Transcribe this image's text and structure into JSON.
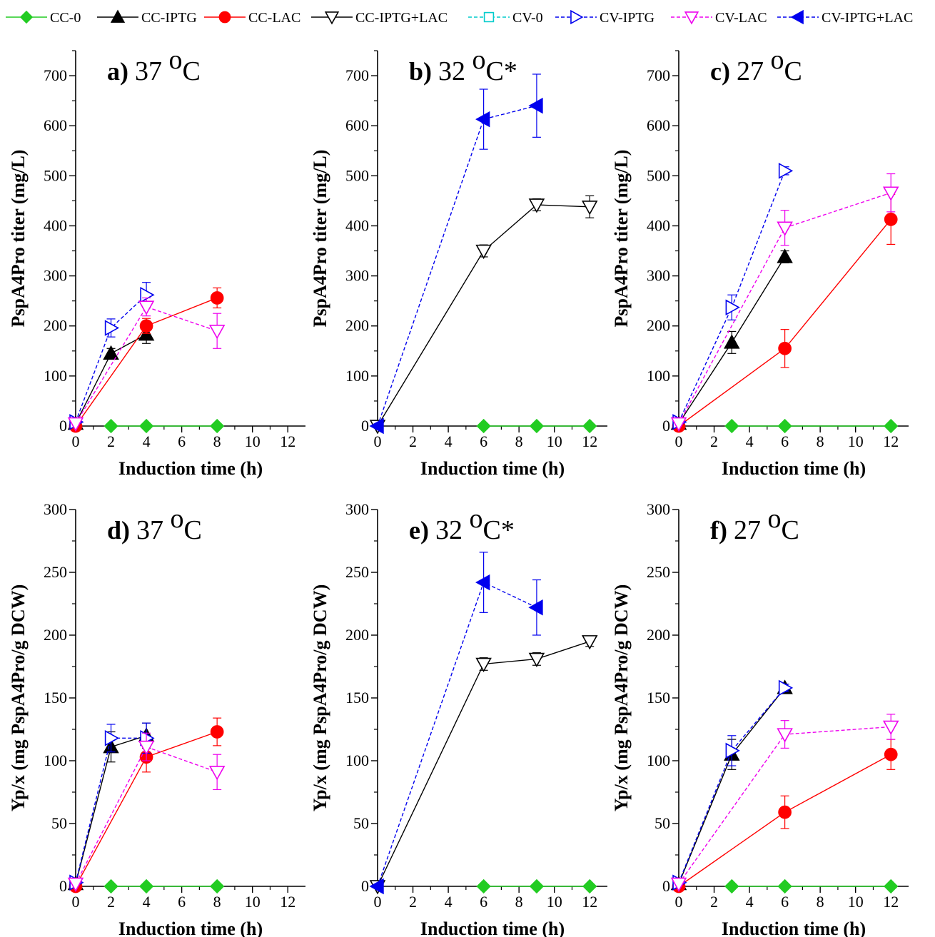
{
  "legend": [
    {
      "key": "cc0",
      "label": "CC-0",
      "color": "#22cc22",
      "marker": "diamond",
      "fill": true,
      "dash": false
    },
    {
      "key": "ccIptg",
      "label": "CC-IPTG",
      "color": "#000000",
      "marker": "triangle-up",
      "fill": true,
      "dash": false
    },
    {
      "key": "ccLac",
      "label": "CC-LAC",
      "color": "#ff0000",
      "marker": "circle",
      "fill": true,
      "dash": false
    },
    {
      "key": "ccIptgLac",
      "label": "CC-IPTG+LAC",
      "color": "#000000",
      "marker": "triangle-down",
      "fill": false,
      "dash": false
    },
    {
      "key": "cv0",
      "label": "CV-0",
      "color": "#00cccc",
      "marker": "square",
      "fill": false,
      "dash": true
    },
    {
      "key": "cvIptg",
      "label": "CV-IPTG",
      "color": "#0000ee",
      "marker": "triangle-right",
      "fill": false,
      "dash": true
    },
    {
      "key": "cvLac",
      "label": "CV-LAC",
      "color": "#ee00ee",
      "marker": "triangle-down",
      "fill": false,
      "dash": true
    },
    {
      "key": "cvIptgLac",
      "label": "CV-IPTG+LAC",
      "color": "#0000ee",
      "marker": "triangle-left",
      "fill": true,
      "dash": true
    }
  ],
  "chart_data": [
    {
      "id": "a",
      "type": "line",
      "title_letter": "a)",
      "title_temp": "37",
      "title_suffix": "",
      "xlabel": "Induction time (h)",
      "ylabel": "PspA4Pro titer (mg/L)",
      "xlim": [
        0,
        13
      ],
      "ylim": [
        0,
        750
      ],
      "xticks": [
        0,
        2,
        4,
        6,
        8,
        10,
        12
      ],
      "yticks": [
        0,
        100,
        200,
        300,
        400,
        500,
        600,
        700
      ],
      "series": [
        {
          "key": "cc0",
          "x": [
            2,
            4,
            8
          ],
          "y": [
            0,
            0,
            0
          ],
          "err": [
            0,
            0,
            0
          ]
        },
        {
          "key": "ccIptg",
          "x": [
            0,
            2,
            4
          ],
          "y": [
            5,
            145,
            183
          ],
          "err": [
            0,
            10,
            18
          ]
        },
        {
          "key": "ccLac",
          "x": [
            0,
            4,
            8
          ],
          "y": [
            0,
            200,
            256
          ],
          "err": [
            0,
            15,
            20
          ]
        },
        {
          "key": "cvIptg",
          "x": [
            0,
            2,
            4
          ],
          "y": [
            8,
            196,
            262
          ],
          "err": [
            0,
            18,
            25
          ]
        },
        {
          "key": "cvLac",
          "x": [
            0,
            4,
            8
          ],
          "y": [
            5,
            238,
            190
          ],
          "err": [
            0,
            18,
            35
          ]
        }
      ]
    },
    {
      "id": "b",
      "type": "line",
      "title_letter": "b)",
      "title_temp": "32",
      "title_suffix": "*",
      "xlabel": "Induction time (h)",
      "ylabel": "PspA4Pro titer (mg/L)",
      "xlim": [
        0,
        13
      ],
      "ylim": [
        0,
        750
      ],
      "xticks": [
        0,
        2,
        4,
        6,
        8,
        10,
        12
      ],
      "yticks": [
        0,
        100,
        200,
        300,
        400,
        500,
        600,
        700
      ],
      "series": [
        {
          "key": "cc0",
          "x": [
            6,
            9,
            12
          ],
          "y": [
            0,
            0,
            0
          ],
          "err": [
            0,
            0,
            0
          ]
        },
        {
          "key": "ccIptgLac",
          "x": [
            0,
            6,
            9,
            12
          ],
          "y": [
            0,
            350,
            442,
            438
          ],
          "err": [
            0,
            12,
            12,
            22
          ]
        },
        {
          "key": "cvIptgLac",
          "x": [
            0,
            6,
            9
          ],
          "y": [
            0,
            613,
            640
          ],
          "err": [
            0,
            60,
            63
          ]
        }
      ]
    },
    {
      "id": "c",
      "type": "line",
      "title_letter": "c)",
      "title_temp": "27",
      "title_suffix": "",
      "xlabel": "Induction time (h)",
      "ylabel": "PspA4Pro titer (mg/L)",
      "xlim": [
        0,
        13
      ],
      "ylim": [
        0,
        750
      ],
      "xticks": [
        0,
        2,
        4,
        6,
        8,
        10,
        12
      ],
      "yticks": [
        0,
        100,
        200,
        300,
        400,
        500,
        600,
        700
      ],
      "series": [
        {
          "key": "cc0",
          "x": [
            3,
            6,
            12
          ],
          "y": [
            0,
            0,
            0
          ],
          "err": [
            0,
            0,
            0
          ]
        },
        {
          "key": "ccIptg",
          "x": [
            0,
            3,
            6
          ],
          "y": [
            5,
            167,
            338
          ],
          "err": [
            0,
            22,
            12
          ]
        },
        {
          "key": "ccLac",
          "x": [
            0,
            6,
            12
          ],
          "y": [
            0,
            155,
            413
          ],
          "err": [
            0,
            38,
            50
          ]
        },
        {
          "key": "cvIptg",
          "x": [
            0,
            3,
            6
          ],
          "y": [
            8,
            237,
            510
          ],
          "err": [
            0,
            25,
            8
          ]
        },
        {
          "key": "cvLac",
          "x": [
            0,
            6,
            12
          ],
          "y": [
            5,
            396,
            466
          ],
          "err": [
            0,
            35,
            38
          ]
        }
      ]
    },
    {
      "id": "d",
      "type": "line",
      "title_letter": "d)",
      "title_temp": "37",
      "title_suffix": "",
      "xlabel": "Induction time (h)",
      "ylabel": "Yp/x (mg PspA4Pro/g DCW)",
      "xlim": [
        0,
        13
      ],
      "ylim": [
        0,
        300
      ],
      "xticks": [
        0,
        2,
        4,
        6,
        8,
        10,
        12
      ],
      "yticks": [
        0,
        50,
        100,
        150,
        200,
        250,
        300
      ],
      "series": [
        {
          "key": "cc0",
          "x": [
            2,
            4,
            8
          ],
          "y": [
            0,
            0,
            0
          ],
          "err": [
            0,
            0,
            0
          ]
        },
        {
          "key": "ccIptg",
          "x": [
            0,
            2,
            4
          ],
          "y": [
            2,
            111,
            120
          ],
          "err": [
            0,
            12,
            10
          ]
        },
        {
          "key": "ccLac",
          "x": [
            0,
            4,
            8
          ],
          "y": [
            0,
            103,
            123
          ],
          "err": [
            0,
            12,
            11
          ]
        },
        {
          "key": "cvIptg",
          "x": [
            0,
            2,
            4
          ],
          "y": [
            3,
            118,
            118
          ],
          "err": [
            0,
            11,
            12
          ]
        },
        {
          "key": "cvLac",
          "x": [
            0,
            4,
            8
          ],
          "y": [
            2,
            111,
            91
          ],
          "err": [
            0,
            11,
            14
          ]
        }
      ]
    },
    {
      "id": "e",
      "type": "line",
      "title_letter": "e)",
      "title_temp": "32",
      "title_suffix": "*",
      "xlabel": "Induction time (h)",
      "ylabel": "Yp/x (mg PspA4Pro/g DCW)",
      "xlim": [
        0,
        13
      ],
      "ylim": [
        0,
        300
      ],
      "xticks": [
        0,
        2,
        4,
        6,
        8,
        10,
        12
      ],
      "yticks": [
        0,
        50,
        100,
        150,
        200,
        250,
        300
      ],
      "series": [
        {
          "key": "cc0",
          "x": [
            6,
            9,
            12
          ],
          "y": [
            0,
            0,
            0
          ],
          "err": [
            0,
            0,
            0
          ]
        },
        {
          "key": "ccIptgLac",
          "x": [
            0,
            6,
            9,
            12
          ],
          "y": [
            0,
            177,
            181,
            195
          ],
          "err": [
            0,
            5,
            5,
            4
          ]
        },
        {
          "key": "cvIptgLac",
          "x": [
            0,
            6,
            9
          ],
          "y": [
            0,
            242,
            222
          ],
          "err": [
            0,
            24,
            22
          ]
        }
      ]
    },
    {
      "id": "f",
      "type": "line",
      "title_letter": "f)",
      "title_temp": "27",
      "title_suffix": "",
      "xlabel": "Induction time (h)",
      "ylabel": "Yp/x (mg PspA4Pro/g DCW)",
      "xlim": [
        0,
        13
      ],
      "ylim": [
        0,
        300
      ],
      "xticks": [
        0,
        2,
        4,
        6,
        8,
        10,
        12
      ],
      "yticks": [
        0,
        50,
        100,
        150,
        200,
        250,
        300
      ],
      "series": [
        {
          "key": "cc0",
          "x": [
            3,
            6,
            12
          ],
          "y": [
            0,
            0,
            0
          ],
          "err": [
            0,
            0,
            0
          ]
        },
        {
          "key": "ccIptg",
          "x": [
            0,
            3,
            6
          ],
          "y": [
            2,
            105,
            158
          ],
          "err": [
            0,
            12,
            3
          ]
        },
        {
          "key": "ccLac",
          "x": [
            0,
            6,
            12
          ],
          "y": [
            0,
            59,
            105
          ],
          "err": [
            0,
            13,
            12
          ]
        },
        {
          "key": "cvIptg",
          "x": [
            0,
            3,
            6
          ],
          "y": [
            3,
            108,
            158
          ],
          "err": [
            0,
            12,
            3
          ]
        },
        {
          "key": "cvLac",
          "x": [
            0,
            6,
            12
          ],
          "y": [
            2,
            121,
            127
          ],
          "err": [
            0,
            11,
            10
          ]
        }
      ]
    }
  ]
}
